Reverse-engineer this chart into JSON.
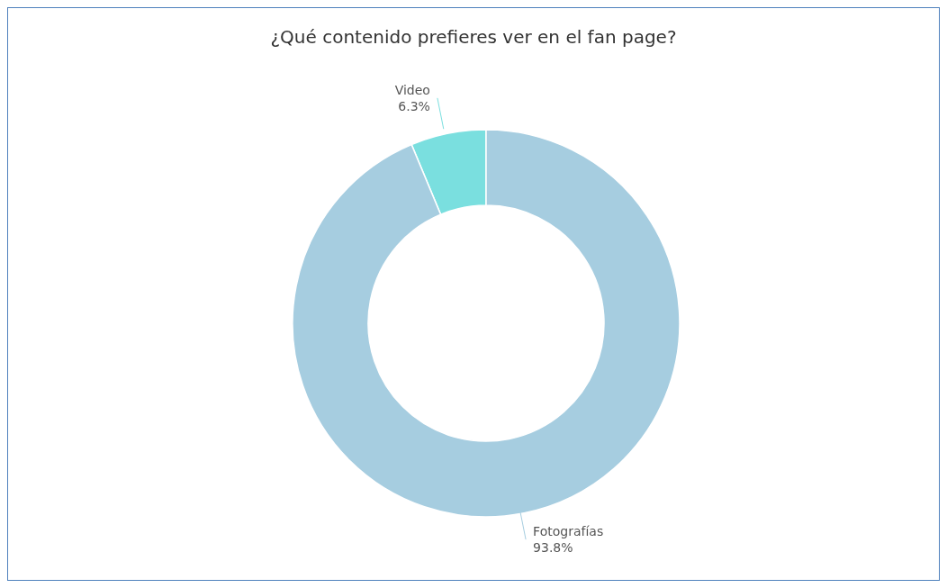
{
  "chart_data": {
    "type": "donut",
    "title": "¿Qué contenido prefieres ver en el fan page?",
    "categories": [
      "Video",
      "Fotografías"
    ],
    "values": [
      6.3,
      93.8
    ],
    "value_labels": [
      "6.3%",
      "93.8%"
    ],
    "colors": [
      "#7adfdf",
      "#a6cde0"
    ],
    "legend": false
  }
}
